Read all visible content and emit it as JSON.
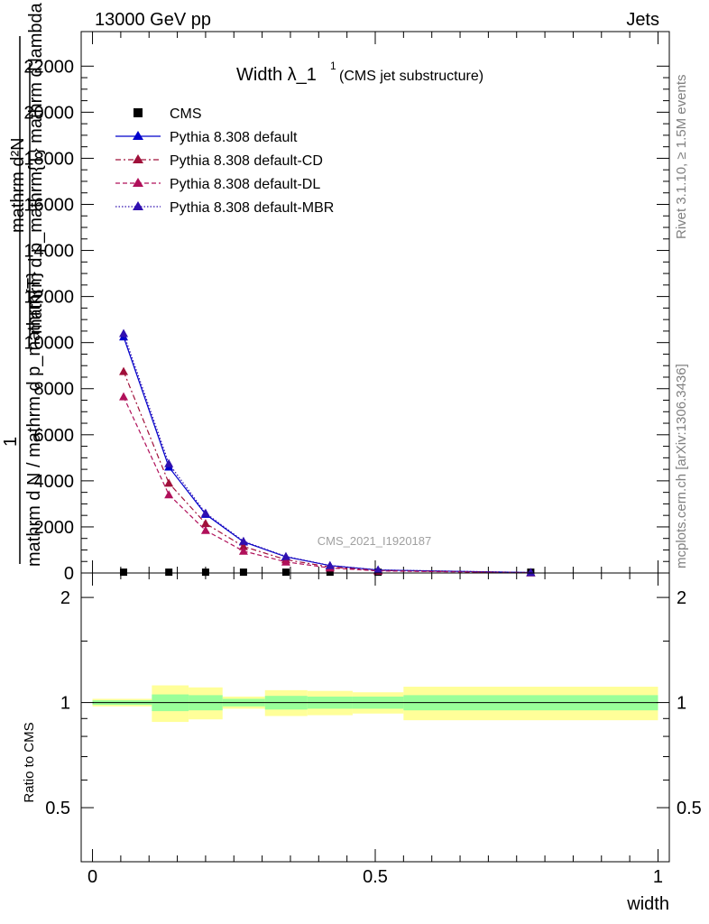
{
  "header": {
    "left": "13000 GeV pp",
    "right": "Jets"
  },
  "side": {
    "rivet": "Rivet 3.1.10, ≥ 1.5M events",
    "mcplots": "mcplots.cern.ch [arXiv:1306.3436]"
  },
  "watermark": "CMS_2021_I1920187",
  "chart_data": [
    {
      "type": "line",
      "title": "Width λ_1",
      "title_sup": "1",
      "title_suffix": "(CMS jet substructure)",
      "ylabel_top": "mathrm d²N",
      "ylabel_bottom": "mathrm d p_mathrm{T} mathrm d lambda",
      "ylabel_one": "1",
      "ylabel_frac_bottom": "mathrm d N / mathrm d p_mathrm{T}",
      "ylim": [
        0,
        23500
      ],
      "yticks": [
        0,
        2000,
        4000,
        6000,
        8000,
        10000,
        12000,
        14000,
        16000,
        18000,
        20000,
        22000
      ],
      "ytick_labels": [
        "0",
        "2000",
        "4000",
        "6000",
        "8000",
        "10000",
        "12000",
        "14000",
        "16000",
        "18000",
        "20000",
        "22000"
      ],
      "xlim": [
        -0.02,
        1.02
      ],
      "legend_position": "top-left",
      "bin_edges": [
        0.0,
        0.105,
        0.17,
        0.23,
        0.305,
        0.38,
        0.46,
        0.55,
        1.0
      ],
      "series": [
        {
          "name": "CMS",
          "style": "data",
          "color": "#000000",
          "x": [
            0.055,
            0.135,
            0.2,
            0.267,
            0.342,
            0.42,
            0.505,
            0.775
          ],
          "y": [
            35,
            35,
            35,
            35,
            35,
            35,
            35,
            35
          ]
        },
        {
          "name": "Pythia 8.308 default",
          "style": "solid",
          "color": "#0000cc",
          "x": [
            0.055,
            0.135,
            0.2,
            0.267,
            0.342,
            0.42,
            0.505,
            0.775
          ],
          "y": [
            10250,
            4600,
            2550,
            1350,
            700,
            320,
            130,
            20
          ]
        },
        {
          "name": "Pythia 8.308 default-CD",
          "style": "dashdot",
          "color": "#a0103a",
          "x": [
            0.055,
            0.135,
            0.2,
            0.267,
            0.342,
            0.42,
            0.505,
            0.775
          ],
          "y": [
            8750,
            3900,
            2150,
            1150,
            580,
            260,
            110,
            15
          ]
        },
        {
          "name": "Pythia 8.308 default-DL",
          "style": "dashed",
          "color": "#b0105a",
          "x": [
            0.055,
            0.135,
            0.2,
            0.267,
            0.342,
            0.42,
            0.505,
            0.775
          ],
          "y": [
            7650,
            3400,
            1850,
            950,
            480,
            220,
            90,
            12
          ]
        },
        {
          "name": "Pythia 8.308 default-MBR",
          "style": "dotted",
          "color": "#3010b0",
          "x": [
            0.055,
            0.135,
            0.2,
            0.267,
            0.342,
            0.42,
            0.505,
            0.775
          ],
          "y": [
            10400,
            4750,
            2600,
            1380,
            720,
            330,
            135,
            21
          ]
        }
      ]
    },
    {
      "type": "area",
      "ylabel": "Ratio to CMS",
      "xlabel": "width",
      "ylim": [
        0.35,
        2.35
      ],
      "yticks": [
        0.5,
        1,
        2
      ],
      "ytick_labels": [
        "0.5",
        "1",
        "2"
      ],
      "xticks": [
        0,
        0.5,
        1
      ],
      "xtick_labels": [
        "0",
        "0.5",
        "1"
      ],
      "bin_edges": [
        0.0,
        0.105,
        0.17,
        0.23,
        0.305,
        0.38,
        0.46,
        0.55,
        1.0
      ],
      "band_yellow": [
        [
          0.975,
          1.025
        ],
        [
          0.88,
          1.12
        ],
        [
          0.895,
          1.105
        ],
        [
          0.96,
          1.04
        ],
        [
          0.915,
          1.085
        ],
        [
          0.92,
          1.08
        ],
        [
          0.93,
          1.07
        ],
        [
          0.89,
          1.11
        ]
      ],
      "band_green": [
        [
          0.985,
          1.015
        ],
        [
          0.945,
          1.055
        ],
        [
          0.95,
          1.05
        ],
        [
          0.975,
          1.025
        ],
        [
          0.955,
          1.045
        ],
        [
          0.96,
          1.04
        ],
        [
          0.96,
          1.04
        ],
        [
          0.95,
          1.05
        ]
      ]
    }
  ],
  "colors": {
    "band_yellow": "#ffff99",
    "band_green": "#99ff99",
    "watermark": "#a0a0a0",
    "side_text": "#808080"
  }
}
